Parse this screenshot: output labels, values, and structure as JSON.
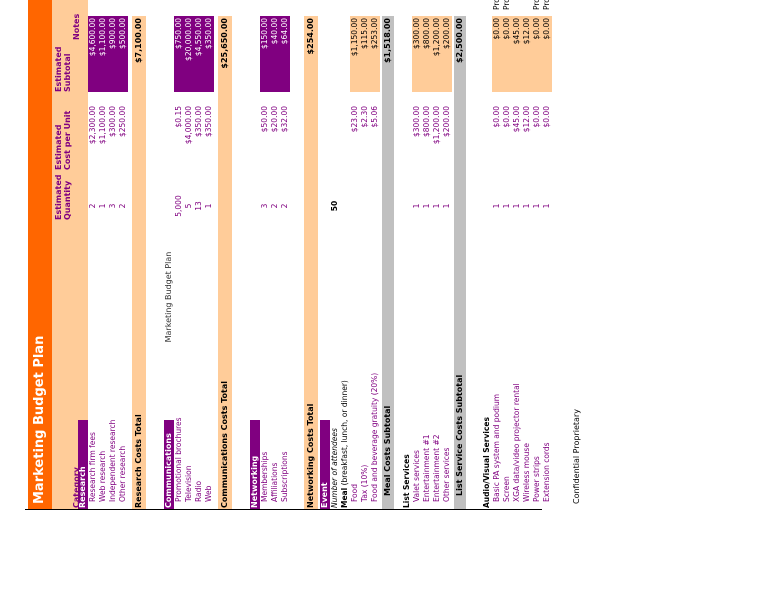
{
  "page_header": "Marketing Budget Plan",
  "title": "Marketing Budget Plan",
  "columns": {
    "category": "Category",
    "quantity": "Estimated Quantity",
    "cost_per_unit": "Estimated Cost per Unit",
    "subtotal": "Estimated Subtotal",
    "notes": "Notes"
  },
  "research": {
    "heading": "Research",
    "rows": [
      {
        "label": "Research firm fees",
        "qty": "2",
        "cpu": "$2,300.00",
        "sub": "$4,600.00"
      },
      {
        "label": "Web research",
        "qty": "1",
        "cpu": "$1,100.00",
        "sub": "$1,100.00"
      },
      {
        "label": "Independent research",
        "qty": "3",
        "cpu": "$300.00",
        "sub": "$900.00"
      },
      {
        "label": "Other research",
        "qty": "2",
        "cpu": "$250.00",
        "sub": "$500.00"
      }
    ],
    "total_label": "Research Costs Total",
    "total_value": "$7,100.00"
  },
  "communications": {
    "heading": "Communications",
    "rows": [
      {
        "label": "Promotional brochures",
        "qty": "5,000",
        "cpu": "$0.15",
        "sub": "$750.00"
      },
      {
        "label": "Television",
        "qty": "5",
        "cpu": "$4,000.00",
        "sub": "$20,000.00"
      },
      {
        "label": "Radio",
        "qty": "13",
        "cpu": "$350.00",
        "sub": "$4,550.00"
      },
      {
        "label": "Web",
        "qty": "1",
        "cpu": "$350.00",
        "sub": "$350.00"
      }
    ],
    "total_label": "Communications Costs Total",
    "total_value": "$25,650.00"
  },
  "networking": {
    "heading": "Networking",
    "rows": [
      {
        "label": "Memberships",
        "qty": "3",
        "cpu": "$50.00",
        "sub": "$150.00"
      },
      {
        "label": "Affiliations",
        "qty": "2",
        "cpu": "$20.00",
        "sub": "$40.00"
      },
      {
        "label": "Subscriptions",
        "qty": "2",
        "cpu": "$32.00",
        "sub": "$64.00"
      }
    ],
    "total_label": "Networking Costs Total",
    "total_value": "$254.00"
  },
  "event": {
    "heading": "Event",
    "attendees_label": "Number of attendees",
    "attendees_value": "50",
    "meal_label": "Meal",
    "meal_note": "(breakfast, lunch, or dinner)",
    "meal_rows": [
      {
        "label": "Food",
        "cpu": "$23.00",
        "sub": "$1,150.00"
      },
      {
        "label": "Tax (10%)",
        "cpu": "$2.30",
        "sub": "$115.00"
      },
      {
        "label": "Food and beverage gratuity (20%)",
        "cpu": "$5.06",
        "sub": "$253.00"
      }
    ],
    "meal_subtotal_label": "Meal Costs Subtotal",
    "meal_subtotal_value": "$1,518.00",
    "list_heading": "List Services",
    "list_rows": [
      {
        "label": "Valet services",
        "qty": "1",
        "cpu": "$300.00",
        "sub": "$300.00"
      },
      {
        "label": "Entertainment #1",
        "qty": "1",
        "cpu": "$800.00",
        "sub": "$800.00"
      },
      {
        "label": "Entertainment #2",
        "qty": "1",
        "cpu": "$1,200.00",
        "sub": "$1,200.00"
      },
      {
        "label": "Other services",
        "qty": "1",
        "cpu": "$200.00",
        "sub": "$200.00"
      }
    ],
    "list_subtotal_label": "List Service Costs Subtotal",
    "list_subtotal_value": "$2,500.00",
    "av_heading": "Audio/Visual Services",
    "av_rows": [
      {
        "label": "Basic PA system and podium",
        "qty": "1",
        "cpu": "$0.00",
        "sub": "$0.00",
        "note": "Provided by venue (usually)"
      },
      {
        "label": "Screen",
        "qty": "1",
        "cpu": "$0.00",
        "sub": "$0.00",
        "note": "Provided by venue (usually)"
      },
      {
        "label": "XGA data/video projector rental",
        "qty": "1",
        "cpu": "$45.00",
        "sub": "$45.00",
        "note": ""
      },
      {
        "label": "Wireless mouse",
        "qty": "1",
        "cpu": "$12.00",
        "sub": "$12.00",
        "note": ""
      },
      {
        "label": "Power strips",
        "qty": "1",
        "cpu": "$0.00",
        "sub": "$0.00",
        "note": "Provided by venue (usually)"
      },
      {
        "label": "Extension cords",
        "qty": "1",
        "cpu": "$0.00",
        "sub": "$0.00",
        "note": "Provided by venue (usually)"
      }
    ]
  },
  "footer": "Confidential Proprietary",
  "colors": {
    "orange": "#ff6600",
    "purple": "#800080",
    "peach": "#ffcc99",
    "gray": "#c0c0c0"
  }
}
